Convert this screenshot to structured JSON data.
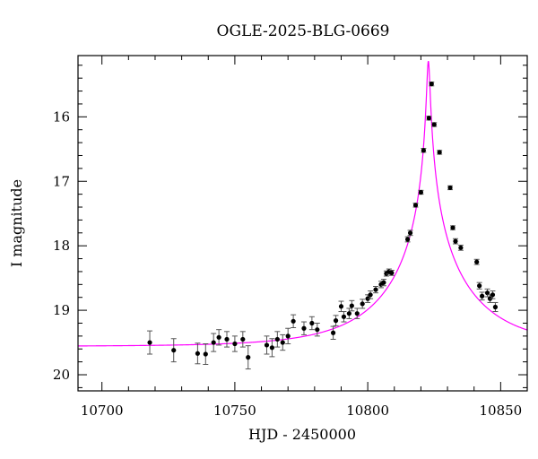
{
  "chart_data": {
    "type": "scatter",
    "title": "OGLE-2025-BLG-0669",
    "xlabel": "HJD - 2450000",
    "ylabel": "I magnitude",
    "xlim": [
      10691,
      10860
    ],
    "ylim": [
      20.25,
      15.05
    ],
    "y_inverted": true,
    "grid": false,
    "legend": "none",
    "x_ticks": [
      10700,
      10750,
      10800,
      10850
    ],
    "y_ticks": [
      16,
      17,
      18,
      19,
      20
    ],
    "colors": {
      "points": "#000000",
      "model": "#ff00ff",
      "errorbars": "#555555"
    },
    "series": [
      {
        "kind": "points",
        "x": [
          10718,
          10727,
          10736,
          10739,
          10742,
          10744,
          10747,
          10750,
          10753,
          10755,
          10762,
          10764,
          10766,
          10768,
          10770,
          10772,
          10776,
          10779,
          10781,
          10787,
          10788,
          10790,
          10791,
          10793,
          10794,
          10796,
          10798,
          10800,
          10801,
          10803,
          10805,
          10806,
          10807,
          10808,
          10809,
          10815,
          10816,
          10818,
          10820,
          10821,
          10823,
          10824,
          10825,
          10827,
          10831,
          10832,
          10833,
          10835,
          10841,
          10842,
          10843,
          10845,
          10846,
          10847,
          10848
        ],
        "y": [
          19.5,
          19.62,
          19.67,
          19.68,
          19.5,
          19.42,
          19.45,
          19.52,
          19.45,
          19.73,
          19.54,
          19.58,
          19.45,
          19.5,
          19.4,
          19.17,
          19.28,
          19.2,
          19.3,
          19.35,
          19.16,
          18.94,
          19.1,
          19.05,
          18.93,
          19.05,
          18.9,
          18.82,
          18.76,
          18.68,
          18.6,
          18.57,
          18.43,
          18.4,
          18.42,
          17.9,
          17.8,
          17.37,
          17.17,
          16.52,
          16.02,
          15.49,
          16.12,
          16.55,
          17.1,
          17.72,
          17.93,
          18.03,
          18.25,
          18.62,
          18.78,
          18.73,
          18.82,
          18.76,
          18.95
        ],
        "err": [
          0.18,
          0.18,
          0.16,
          0.16,
          0.14,
          0.12,
          0.12,
          0.12,
          0.12,
          0.18,
          0.14,
          0.14,
          0.12,
          0.12,
          0.12,
          0.1,
          0.1,
          0.1,
          0.1,
          0.1,
          0.08,
          0.08,
          0.08,
          0.08,
          0.08,
          0.08,
          0.07,
          0.06,
          0.06,
          0.05,
          0.05,
          0.05,
          0.04,
          0.04,
          0.04,
          0.04,
          0.04,
          0.03,
          0.03,
          0.03,
          0.03,
          0.03,
          0.03,
          0.03,
          0.03,
          0.03,
          0.04,
          0.04,
          0.04,
          0.05,
          0.06,
          0.06,
          0.06,
          0.06,
          0.07
        ]
      },
      {
        "kind": "model",
        "baseline_mag": 19.56,
        "t0": 10822.8,
        "tE": 33,
        "u0": 0.017
      }
    ]
  }
}
